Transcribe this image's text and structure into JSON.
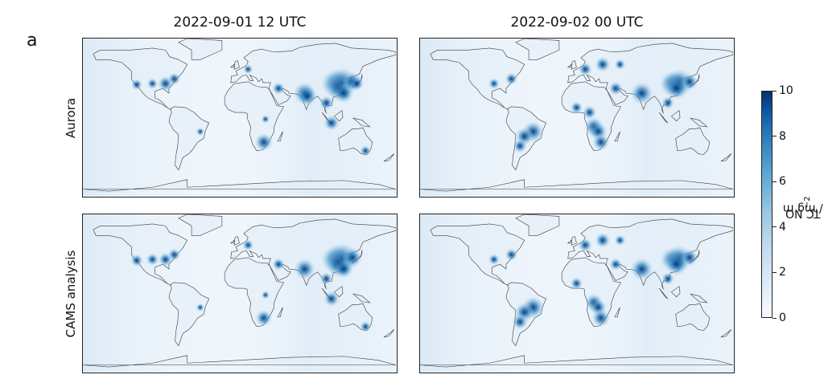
{
  "panel_letter": "a",
  "columns": [
    "2022-09-01 12 UTC",
    "2022-09-02 00 UTC"
  ],
  "rows": [
    "Aurora",
    "CAMS analysis"
  ],
  "colorbar": {
    "label_text": "TC NO",
    "label_sub": "2",
    "label_unit": " / mg m",
    "label_sup": "−2",
    "min": 0,
    "max": 10,
    "ticks": [
      "0",
      "2",
      "4",
      "6",
      "8",
      "10"
    ],
    "colormap": "Blues"
  },
  "colors": {
    "ocean_low": "#eef5fb",
    "high": "#08306b",
    "coast": "#3a3a3a"
  },
  "hotspots": {
    "aurora_t1": [
      [
        -100,
        35,
        0.8
      ],
      [
        -85,
        35,
        1.1
      ],
      [
        -75,
        40,
        0.9
      ],
      [
        -118,
        34,
        0.8
      ],
      [
        10,
        50,
        0.7
      ],
      [
        45,
        30,
        0.9
      ],
      [
        75,
        25,
        1.6
      ],
      [
        78,
        22,
        1.4
      ],
      [
        110,
        35,
        2.0
      ],
      [
        118,
        36,
        2.2
      ],
      [
        115,
        30,
        1.8
      ],
      [
        120,
        25,
        1.4
      ],
      [
        130,
        37,
        1.4
      ],
      [
        135,
        35,
        1.0
      ],
      [
        106,
        -6,
        1.1
      ],
      [
        28,
        -26,
        1.3
      ],
      [
        30,
        -2,
        0.6
      ],
      [
        -45,
        -15,
        0.6
      ],
      [
        145,
        -35,
        0.8
      ],
      [
        100,
        15,
        1.0
      ]
    ],
    "aurora_t2": [
      [
        -95,
        35,
        0.8
      ],
      [
        -75,
        40,
        0.9
      ],
      [
        10,
        50,
        1.0
      ],
      [
        30,
        55,
        1.1
      ],
      [
        50,
        55,
        0.8
      ],
      [
        45,
        30,
        1.0
      ],
      [
        75,
        25,
        1.6
      ],
      [
        110,
        35,
        1.8
      ],
      [
        118,
        36,
        2.0
      ],
      [
        115,
        30,
        1.6
      ],
      [
        130,
        37,
        1.2
      ],
      [
        -50,
        -15,
        1.5
      ],
      [
        -60,
        -20,
        1.3
      ],
      [
        -65,
        -30,
        1.0
      ],
      [
        20,
        -10,
        1.4
      ],
      [
        25,
        -15,
        1.3
      ],
      [
        15,
        5,
        1.0
      ],
      [
        28,
        -26,
        1.2
      ],
      [
        0,
        10,
        0.9
      ],
      [
        105,
        15,
        0.9
      ]
    ],
    "cams_t1": [
      [
        -100,
        35,
        0.9
      ],
      [
        -85,
        35,
        1.0
      ],
      [
        -75,
        40,
        0.9
      ],
      [
        -118,
        34,
        0.9
      ],
      [
        10,
        50,
        0.8
      ],
      [
        45,
        30,
        0.9
      ],
      [
        75,
        25,
        1.5
      ],
      [
        110,
        35,
        2.0
      ],
      [
        118,
        36,
        2.3
      ],
      [
        115,
        30,
        1.9
      ],
      [
        120,
        25,
        1.3
      ],
      [
        130,
        37,
        1.4
      ],
      [
        106,
        -6,
        1.1
      ],
      [
        28,
        -26,
        1.2
      ],
      [
        30,
        -2,
        0.6
      ],
      [
        -45,
        -15,
        0.6
      ],
      [
        145,
        -35,
        0.8
      ],
      [
        100,
        15,
        0.9
      ]
    ],
    "cams_t2": [
      [
        -95,
        35,
        0.8
      ],
      [
        -75,
        40,
        0.9
      ],
      [
        10,
        50,
        1.0
      ],
      [
        30,
        55,
        1.1
      ],
      [
        50,
        55,
        0.8
      ],
      [
        45,
        30,
        0.9
      ],
      [
        75,
        25,
        1.6
      ],
      [
        110,
        35,
        1.7
      ],
      [
        118,
        36,
        1.9
      ],
      [
        115,
        30,
        1.6
      ],
      [
        130,
        37,
        1.2
      ],
      [
        -50,
        -15,
        1.6
      ],
      [
        -60,
        -20,
        1.4
      ],
      [
        -65,
        -30,
        1.1
      ],
      [
        20,
        -10,
        1.3
      ],
      [
        25,
        -15,
        1.2
      ],
      [
        28,
        -26,
        1.3
      ],
      [
        0,
        10,
        0.9
      ],
      [
        105,
        15,
        0.9
      ]
    ]
  }
}
